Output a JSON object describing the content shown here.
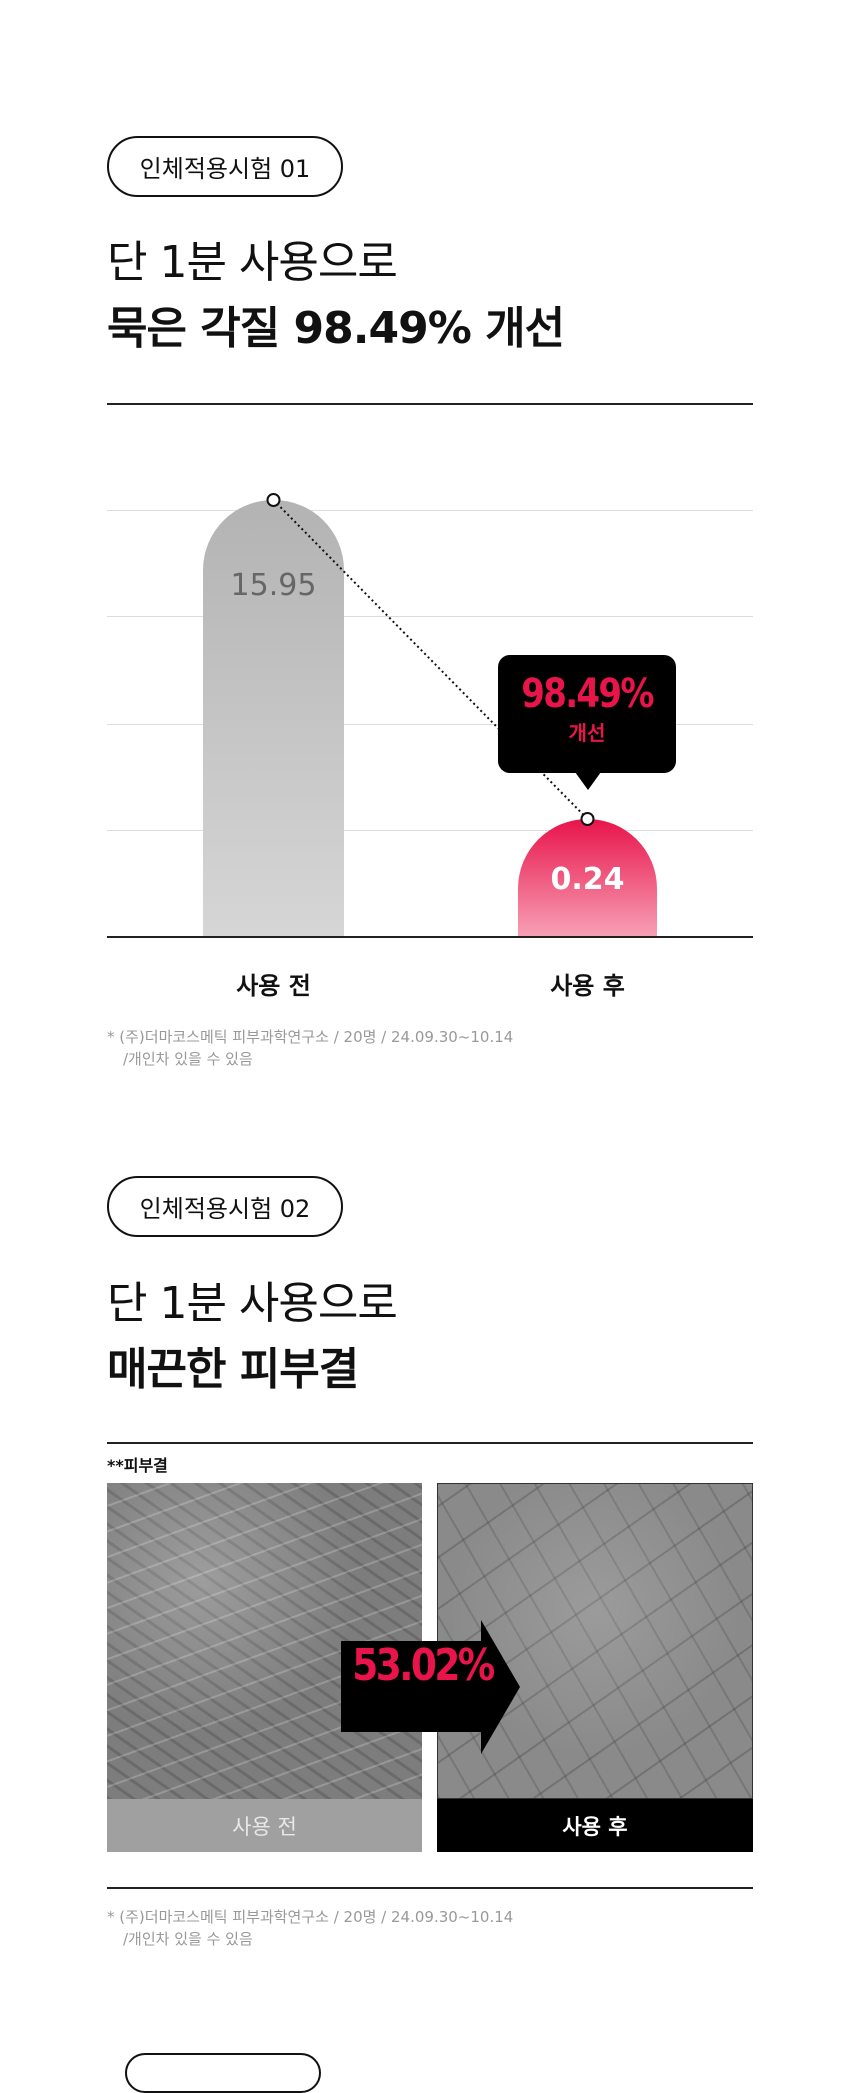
{
  "section1": {
    "badge": "인체적용시험 01",
    "title_line1": "단 1분 사용으로",
    "title_line2": "묵은 각질 98.49% 개선",
    "chart_data": {
      "type": "bar",
      "categories": [
        "사용 전",
        "사용 후"
      ],
      "values": [
        15.95,
        0.24
      ],
      "value_labels": [
        "15.95",
        "0.24"
      ],
      "colors": [
        "#bdbdbd",
        "#e8144a"
      ],
      "annotation": {
        "value": "98.49%",
        "label": "개선"
      },
      "grid": true
    },
    "note_line1": "* (주)더마코스메틱 피부과학연구소 / 20명 / 24.09.30~10.14",
    "note_line2": "/개인차 있을 수 있음"
  },
  "section2": {
    "badge": "인체적용시험 02",
    "title_line1": "단 1분 사용으로",
    "title_line2": "매끈한 피부결",
    "caption": "**피부결",
    "before_label": "사용 전",
    "after_label": "사용 후",
    "improvement": "53.02%",
    "note_line1": "* (주)더마코스메틱 피부과학연구소 / 20명 / 24.09.30~10.14",
    "note_line2": "/개인차 있을 수 있음"
  },
  "colors": {
    "accent": "#e8144a",
    "dark": "#000000"
  }
}
